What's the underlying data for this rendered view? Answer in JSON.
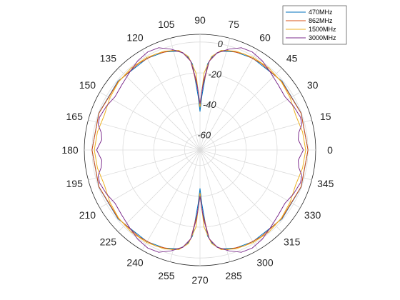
{
  "chart_data": {
    "type": "polar-line",
    "title": "",
    "theta_unit": "degrees",
    "theta_tick_labels": [
      "0",
      "15",
      "30",
      "45",
      "60",
      "75",
      "90",
      "105",
      "120",
      "135",
      "150",
      "165",
      "180",
      "195",
      "210",
      "225",
      "240",
      "255",
      "270",
      "285",
      "300",
      "315",
      "330",
      "345"
    ],
    "r_tick_labels": [
      "-60",
      "-40",
      "-20",
      "0"
    ],
    "r_lim": [
      -70,
      5
    ],
    "grid": true,
    "legend_position": "top-right",
    "series": [
      {
        "name": "470MHz",
        "color": "#0072BD",
        "points": [
          [
            0,
            0
          ],
          [
            20,
            -0.2
          ],
          [
            40,
            -0.6
          ],
          [
            60,
            -1.4
          ],
          [
            70,
            -2.4
          ],
          [
            78,
            -4.5
          ],
          [
            82,
            -8
          ],
          [
            85,
            -14
          ],
          [
            88,
            -35
          ],
          [
            90,
            -45
          ],
          [
            92,
            -35
          ],
          [
            95,
            -14
          ],
          [
            98,
            -8
          ],
          [
            102,
            -4.5
          ],
          [
            110,
            -2.4
          ],
          [
            120,
            -1.4
          ],
          [
            140,
            -0.6
          ],
          [
            160,
            -0.2
          ],
          [
            180,
            0
          ],
          [
            200,
            -0.2
          ],
          [
            220,
            -0.6
          ],
          [
            240,
            -1.4
          ],
          [
            250,
            -2.4
          ],
          [
            258,
            -4.5
          ],
          [
            262,
            -8
          ],
          [
            265,
            -14
          ],
          [
            268,
            -35
          ],
          [
            270,
            -45
          ],
          [
            272,
            -35
          ],
          [
            275,
            -14
          ],
          [
            278,
            -8
          ],
          [
            282,
            -4.5
          ],
          [
            290,
            -2.4
          ],
          [
            300,
            -1.4
          ],
          [
            320,
            -0.6
          ],
          [
            340,
            -0.2
          ],
          [
            360,
            0
          ]
        ]
      },
      {
        "name": "862MHz",
        "color": "#D95319",
        "points": [
          [
            0,
            0
          ],
          [
            20,
            -0.3
          ],
          [
            40,
            -0.9
          ],
          [
            55,
            -1.2
          ],
          [
            65,
            -1.5
          ],
          [
            75,
            -3
          ],
          [
            80,
            -6
          ],
          [
            84,
            -12
          ],
          [
            88,
            -30
          ],
          [
            90,
            -42
          ],
          [
            92,
            -30
          ],
          [
            96,
            -12
          ],
          [
            100,
            -6
          ],
          [
            105,
            -3
          ],
          [
            115,
            -1.5
          ],
          [
            125,
            -1.2
          ],
          [
            140,
            -0.9
          ],
          [
            160,
            -0.3
          ],
          [
            180,
            0
          ],
          [
            200,
            -0.3
          ],
          [
            220,
            -0.9
          ],
          [
            235,
            -1.2
          ],
          [
            245,
            -1.5
          ],
          [
            255,
            -3
          ],
          [
            260,
            -6
          ],
          [
            264,
            -12
          ],
          [
            268,
            -30
          ],
          [
            270,
            -42
          ],
          [
            272,
            -30
          ],
          [
            276,
            -12
          ],
          [
            280,
            -6
          ],
          [
            285,
            -3
          ],
          [
            295,
            -1.5
          ],
          [
            305,
            -1.2
          ],
          [
            320,
            -0.9
          ],
          [
            340,
            -0.3
          ],
          [
            360,
            0
          ]
        ]
      },
      {
        "name": "1500MHz",
        "color": "#EDB120",
        "points": [
          [
            0,
            -1.5
          ],
          [
            10,
            -2.5
          ],
          [
            20,
            -4
          ],
          [
            30,
            -2.5
          ],
          [
            40,
            -1.2
          ],
          [
            50,
            -0.6
          ],
          [
            60,
            -0.8
          ],
          [
            70,
            -1.8
          ],
          [
            78,
            -4
          ],
          [
            83,
            -9
          ],
          [
            87,
            -20
          ],
          [
            90,
            -42
          ],
          [
            93,
            -20
          ],
          [
            97,
            -9
          ],
          [
            102,
            -4
          ],
          [
            110,
            -1.8
          ],
          [
            120,
            -0.8
          ],
          [
            130,
            -0.6
          ],
          [
            140,
            -1.2
          ],
          [
            150,
            -2.5
          ],
          [
            160,
            -4
          ],
          [
            170,
            -2.5
          ],
          [
            180,
            -1.5
          ],
          [
            190,
            -2.5
          ],
          [
            200,
            -4
          ],
          [
            210,
            -2.5
          ],
          [
            220,
            -1.2
          ],
          [
            230,
            -0.6
          ],
          [
            240,
            -0.8
          ],
          [
            250,
            -1.8
          ],
          [
            258,
            -4
          ],
          [
            263,
            -9
          ],
          [
            267,
            -20
          ],
          [
            270,
            -42
          ],
          [
            273,
            -20
          ],
          [
            277,
            -9
          ],
          [
            282,
            -4
          ],
          [
            290,
            -1.8
          ],
          [
            300,
            -0.8
          ],
          [
            310,
            -0.6
          ],
          [
            320,
            -1.2
          ],
          [
            330,
            -2.5
          ],
          [
            340,
            -4
          ],
          [
            350,
            -2.5
          ],
          [
            360,
            -1.5
          ]
        ]
      },
      {
        "name": "3000MHz",
        "color": "#7E2F8E",
        "points": [
          [
            0,
            -3
          ],
          [
            6,
            -6
          ],
          [
            10,
            -5
          ],
          [
            14,
            -2
          ],
          [
            18,
            -1.5
          ],
          [
            25,
            -3
          ],
          [
            32,
            -5
          ],
          [
            40,
            -4
          ],
          [
            48,
            -2
          ],
          [
            55,
            0.5
          ],
          [
            62,
            2
          ],
          [
            68,
            1.5
          ],
          [
            74,
            -2
          ],
          [
            80,
            -6
          ],
          [
            84,
            -12
          ],
          [
            87,
            -25
          ],
          [
            90,
            -40
          ],
          [
            93,
            -25
          ],
          [
            96,
            -12
          ],
          [
            100,
            -6
          ],
          [
            106,
            -2
          ],
          [
            112,
            1.5
          ],
          [
            118,
            2
          ],
          [
            125,
            0.5
          ],
          [
            132,
            -2
          ],
          [
            140,
            -4
          ],
          [
            148,
            -5
          ],
          [
            155,
            -3
          ],
          [
            162,
            -1.5
          ],
          [
            166,
            -2
          ],
          [
            170,
            -5
          ],
          [
            174,
            -6
          ],
          [
            180,
            -3
          ],
          [
            186,
            -6
          ],
          [
            190,
            -5
          ],
          [
            194,
            -2
          ],
          [
            198,
            -1.5
          ],
          [
            205,
            -3
          ],
          [
            212,
            -5
          ],
          [
            220,
            -4
          ],
          [
            228,
            -2
          ],
          [
            235,
            0.5
          ],
          [
            242,
            2
          ],
          [
            248,
            1.5
          ],
          [
            254,
            -2
          ],
          [
            260,
            -6
          ],
          [
            264,
            -12
          ],
          [
            267,
            -25
          ],
          [
            270,
            -40
          ],
          [
            273,
            -25
          ],
          [
            276,
            -12
          ],
          [
            280,
            -6
          ],
          [
            286,
            -2
          ],
          [
            292,
            1.5
          ],
          [
            298,
            2
          ],
          [
            305,
            0.5
          ],
          [
            312,
            -2
          ],
          [
            320,
            -4
          ],
          [
            328,
            -5
          ],
          [
            335,
            -3
          ],
          [
            342,
            -1.5
          ],
          [
            346,
            -2
          ],
          [
            350,
            -5
          ],
          [
            354,
            -6
          ],
          [
            360,
            -3
          ]
        ]
      }
    ]
  }
}
